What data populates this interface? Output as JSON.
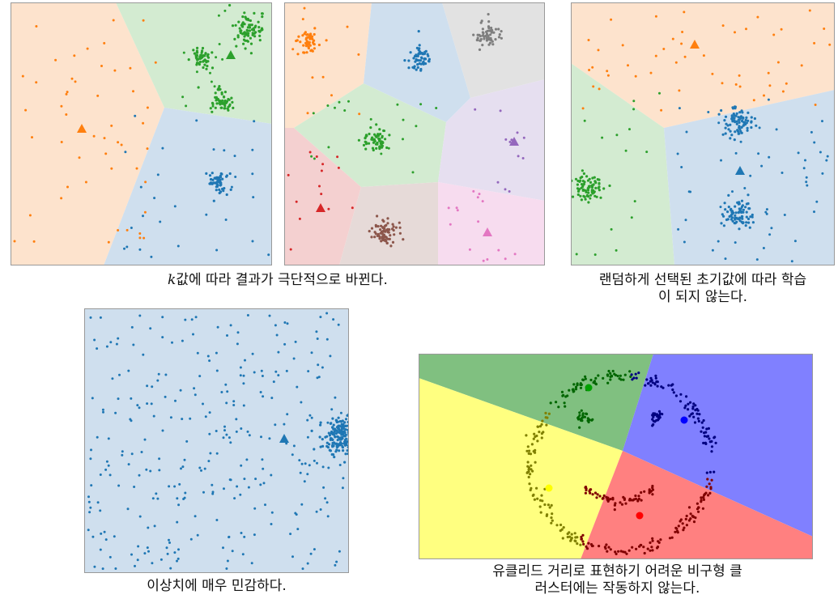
{
  "captions": {
    "k_sensitivity_var": "k",
    "k_sensitivity": "값에 따라 결과가 극단적으로 바뀐다.",
    "init_line1": "랜덤하게 선택된 초기값에 따라 학습",
    "init_line2": "이 되지 않는다.",
    "outlier": "이상치에 매우 민감하다.",
    "nonconvex_line1": "유클리드 거리로 표현하기 어려운 비구형 클",
    "nonconvex_line2": "러스터에는 작동하지 않는다."
  },
  "colors": {
    "blue": "#1f77b4",
    "orange": "#ff7f0e",
    "green": "#2ca02c",
    "red": "#d62728",
    "purple": "#9467bd",
    "brown": "#8c564b",
    "pink": "#e377c2",
    "gray": "#7f7f7f",
    "region_blue": "#cfdfee",
    "region_orange": "#fde3cd",
    "region_green": "#d3ebd1",
    "region_red": "#f4d0d0",
    "region_purple": "#e6dff0",
    "region_brown": "#e6dad8",
    "region_pink": "#f7dcef",
    "region_gray": "#e2e2e2",
    "smile_green": "#80c080",
    "smile_blue": "#8080ff",
    "smile_yellow": "#ffff80",
    "smile_red": "#ff8080"
  }
}
